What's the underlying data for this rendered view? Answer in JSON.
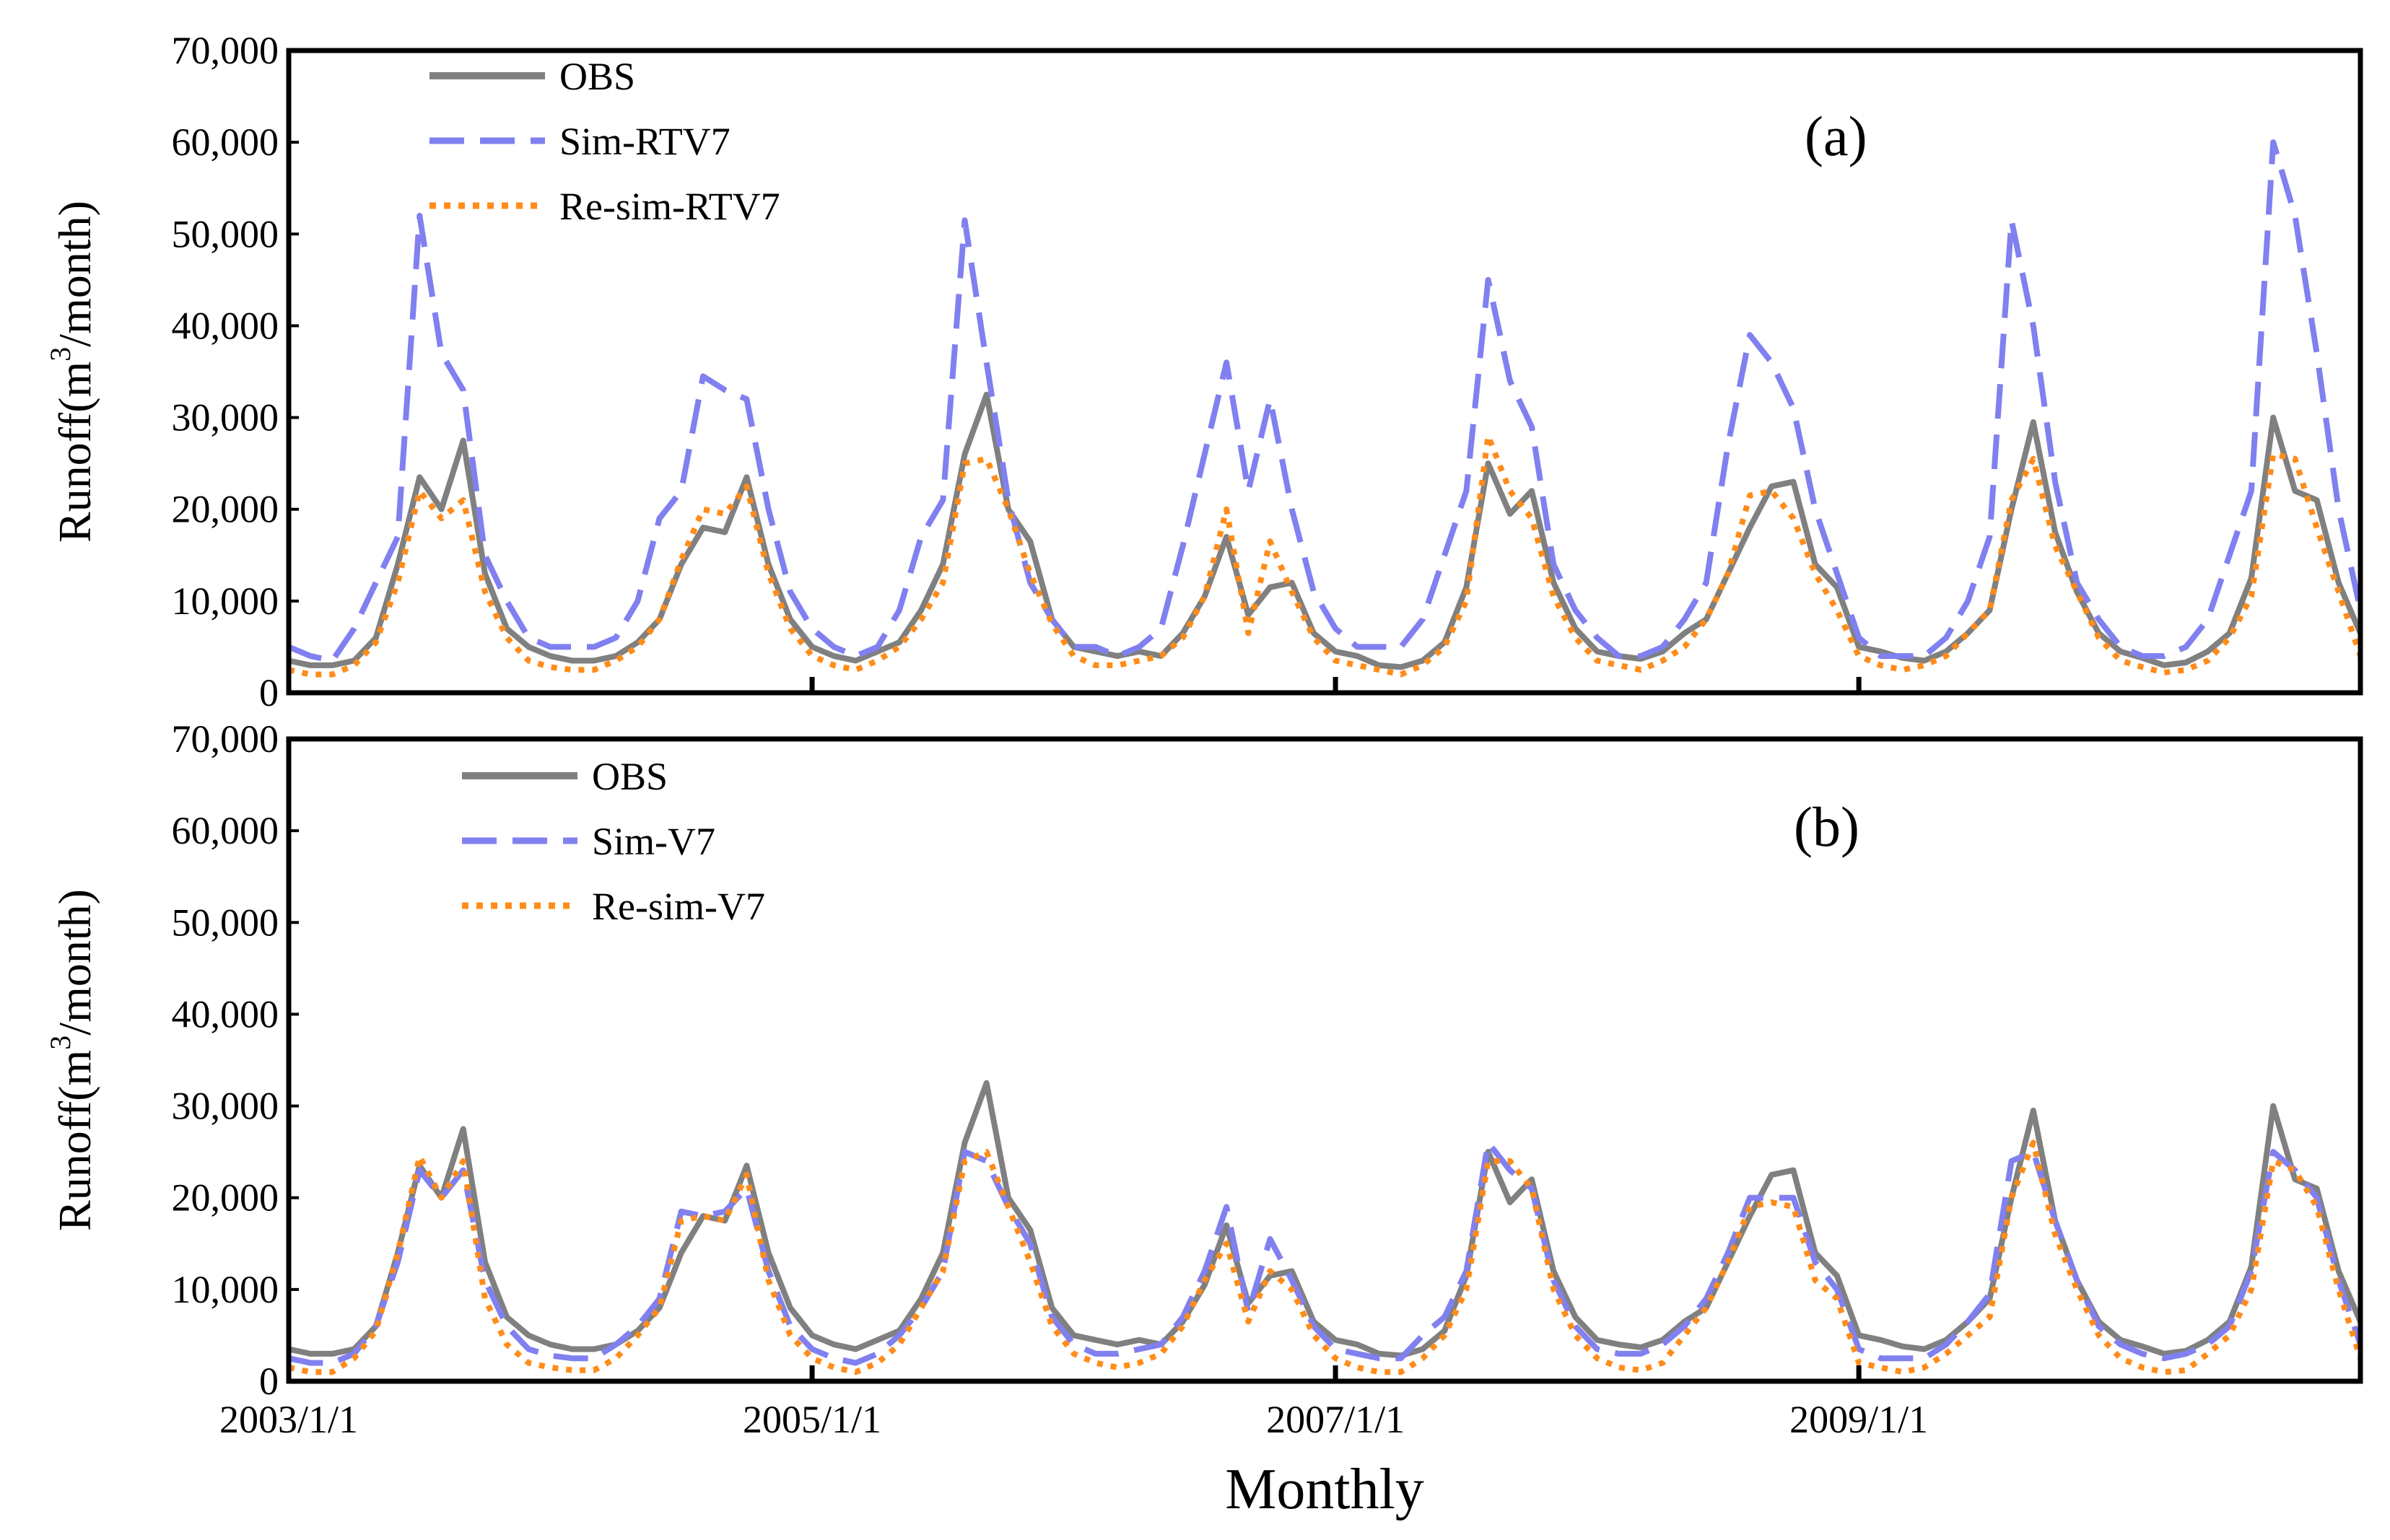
{
  "figure": {
    "xlabel": "Monthly",
    "x_tick_labels": [
      "2003/1/1",
      "2005/1/1",
      "2007/1/1",
      "2009/1/1"
    ],
    "y_tick_labels": [
      "0",
      "10,000",
      "20,000",
      "30,000",
      "40,000",
      "50,000",
      "60,000",
      "70,000"
    ],
    "ylabel_prefix": "Runoff(m",
    "ylabel_superscript": "3",
    "ylabel_suffix": "/month)"
  },
  "chart_data": [
    {
      "type": "line",
      "panel_label": "(a)",
      "ylabel": "Runoff(m3/month)",
      "xlabel": "",
      "ylim": [
        0,
        70000
      ],
      "x_start": "2003/1/1",
      "months": 96,
      "grid": false,
      "legend_position": "top-left",
      "series": [
        {
          "name": "OBS",
          "color": "#808080",
          "style": "solid",
          "values": [
            3500,
            3000,
            3000,
            3500,
            6000,
            14000,
            23500,
            20000,
            27500,
            13000,
            7000,
            5000,
            4000,
            3500,
            3500,
            4000,
            5500,
            8000,
            14000,
            18000,
            17500,
            23500,
            14000,
            8000,
            5000,
            4000,
            3500,
            4500,
            5500,
            9000,
            14000,
            26000,
            32500,
            20000,
            16500,
            8000,
            5000,
            4500,
            4000,
            4500,
            4000,
            6500,
            10500,
            17000,
            8500,
            11500,
            12000,
            6500,
            4500,
            4000,
            3000,
            2800,
            3500,
            5500,
            11500,
            25000,
            19500,
            22000,
            12000,
            7000,
            4500,
            4000,
            3700,
            4500,
            6500,
            8000,
            13000,
            18000,
            22500,
            23000,
            14000,
            11500,
            5000,
            4500,
            3800,
            3500,
            4500,
            6500,
            9000,
            20000,
            29500,
            17500,
            11000,
            6500,
            4500,
            3800,
            3000,
            3300,
            4500,
            6500,
            12500,
            30000,
            22000,
            21000,
            12000,
            6500
          ]
        },
        {
          "name": "Sim-RTV7",
          "color": "#8080f0",
          "style": "dashed",
          "values": [
            5000,
            4000,
            3500,
            7000,
            12000,
            17000,
            52000,
            37000,
            33000,
            15000,
            10000,
            6000,
            5000,
            5000,
            5000,
            6000,
            10000,
            19000,
            22000,
            34500,
            33000,
            32000,
            20000,
            11000,
            7000,
            5000,
            4000,
            5000,
            9000,
            17000,
            21000,
            51500,
            36000,
            21000,
            12000,
            8000,
            5000,
            5000,
            4000,
            5000,
            7000,
            16000,
            26000,
            36000,
            22000,
            32000,
            20000,
            11000,
            7000,
            5000,
            5000,
            5000,
            8000,
            15000,
            22000,
            45000,
            34000,
            29000,
            14000,
            9000,
            6000,
            4000,
            4000,
            5000,
            8000,
            12000,
            27000,
            39000,
            36000,
            31000,
            20000,
            13000,
            6000,
            4000,
            4000,
            4000,
            6000,
            10000,
            17000,
            51500,
            40000,
            23000,
            12000,
            8000,
            5000,
            4000,
            4000,
            5000,
            8000,
            15000,
            22000,
            60000,
            52000,
            37000,
            20000,
            9000
          ]
        },
        {
          "name": "Re-sim-RTV7",
          "color": "#ff8c1a",
          "style": "dotted",
          "values": [
            2500,
            2000,
            2000,
            3000,
            5500,
            12000,
            22000,
            19000,
            21000,
            11000,
            6000,
            3500,
            2800,
            2500,
            2500,
            3500,
            5000,
            8000,
            14500,
            20000,
            19500,
            22500,
            13000,
            7000,
            4000,
            3000,
            2500,
            3500,
            5000,
            8000,
            12000,
            25000,
            25500,
            20000,
            13000,
            7500,
            4000,
            3000,
            3000,
            3500,
            4000,
            6000,
            10500,
            20000,
            6500,
            16500,
            11000,
            6000,
            3500,
            3000,
            2500,
            2000,
            3000,
            5000,
            10000,
            28000,
            22000,
            19000,
            10500,
            6000,
            3500,
            3000,
            2500,
            3500,
            5000,
            8000,
            13000,
            21500,
            22000,
            19000,
            13000,
            9000,
            4000,
            3000,
            2500,
            3000,
            4000,
            6500,
            9000,
            21000,
            25500,
            16000,
            11000,
            6000,
            3500,
            2800,
            2200,
            2500,
            3500,
            6000,
            10500,
            26000,
            25500,
            18000,
            11000,
            4000
          ]
        }
      ]
    },
    {
      "type": "line",
      "panel_label": "(b)",
      "ylabel": "Runoff(m3/month)",
      "xlabel": "Monthly",
      "ylim": [
        0,
        70000
      ],
      "x_start": "2003/1/1",
      "months": 96,
      "grid": false,
      "legend_position": "top-left",
      "series": [
        {
          "name": "OBS",
          "color": "#808080",
          "style": "solid",
          "values": [
            3500,
            3000,
            3000,
            3500,
            6000,
            14000,
            23500,
            20000,
            27500,
            13000,
            7000,
            5000,
            4000,
            3500,
            3500,
            4000,
            5500,
            8000,
            14000,
            18000,
            17500,
            23500,
            14000,
            8000,
            5000,
            4000,
            3500,
            4500,
            5500,
            9000,
            14000,
            26000,
            32500,
            20000,
            16500,
            8000,
            5000,
            4500,
            4000,
            4500,
            4000,
            6500,
            10500,
            17000,
            8500,
            11500,
            12000,
            6500,
            4500,
            4000,
            3000,
            2800,
            3500,
            5500,
            11500,
            25000,
            19500,
            22000,
            12000,
            7000,
            4500,
            4000,
            3700,
            4500,
            6500,
            8000,
            13000,
            18000,
            22500,
            23000,
            14000,
            11500,
            5000,
            4500,
            3800,
            3500,
            4500,
            6500,
            9000,
            20000,
            29500,
            17500,
            11000,
            6500,
            4500,
            3800,
            3000,
            3300,
            4500,
            6500,
            12500,
            30000,
            22000,
            21000,
            12000,
            6500
          ]
        },
        {
          "name": "Sim-V7",
          "color": "#8080f0",
          "style": "dashed",
          "values": [
            2500,
            2000,
            2000,
            3000,
            6000,
            13000,
            23000,
            20000,
            23000,
            11000,
            6000,
            3500,
            2800,
            2500,
            2500,
            4000,
            6000,
            9000,
            18500,
            18000,
            18500,
            21000,
            12000,
            6000,
            3500,
            2500,
            2000,
            3000,
            5000,
            8000,
            12000,
            25000,
            24000,
            19000,
            15000,
            7000,
            4000,
            3000,
            3000,
            3500,
            4000,
            7000,
            12000,
            19000,
            7500,
            15500,
            11000,
            6000,
            3500,
            3000,
            2500,
            2500,
            5000,
            7000,
            12000,
            26000,
            23000,
            21000,
            11000,
            6000,
            3500,
            3000,
            3000,
            4000,
            6000,
            9000,
            14000,
            20000,
            20000,
            20000,
            13000,
            10000,
            3500,
            2500,
            2500,
            2500,
            4000,
            6500,
            9500,
            24000,
            25000,
            17500,
            11000,
            6000,
            4000,
            3000,
            2500,
            3000,
            4000,
            6000,
            12000,
            25000,
            23000,
            20000,
            11000,
            4000
          ]
        },
        {
          "name": "Re-sim-V7",
          "color": "#ff8c1a",
          "style": "dotted",
          "values": [
            1500,
            1000,
            1000,
            2500,
            5500,
            14000,
            24500,
            20000,
            24000,
            9000,
            4000,
            2000,
            1500,
            1200,
            1200,
            2500,
            5000,
            8000,
            17500,
            18000,
            17500,
            22500,
            11000,
            5000,
            2500,
            1500,
            1000,
            2000,
            4000,
            8000,
            12000,
            24000,
            25000,
            19000,
            13000,
            6000,
            3000,
            2000,
            1500,
            2000,
            3000,
            6000,
            11000,
            15000,
            6500,
            12000,
            10000,
            5000,
            2500,
            1500,
            1000,
            1000,
            2500,
            5000,
            10000,
            24000,
            24000,
            21000,
            10000,
            5000,
            2500,
            1500,
            1200,
            2000,
            5000,
            8000,
            13000,
            19000,
            19500,
            19000,
            11000,
            9000,
            2000,
            1500,
            1000,
            1500,
            3000,
            5000,
            7000,
            20000,
            26000,
            16000,
            10000,
            5000,
            2500,
            1500,
            1000,
            1200,
            3000,
            5000,
            10000,
            24000,
            23000,
            19000,
            10000,
            2500
          ]
        }
      ]
    }
  ]
}
